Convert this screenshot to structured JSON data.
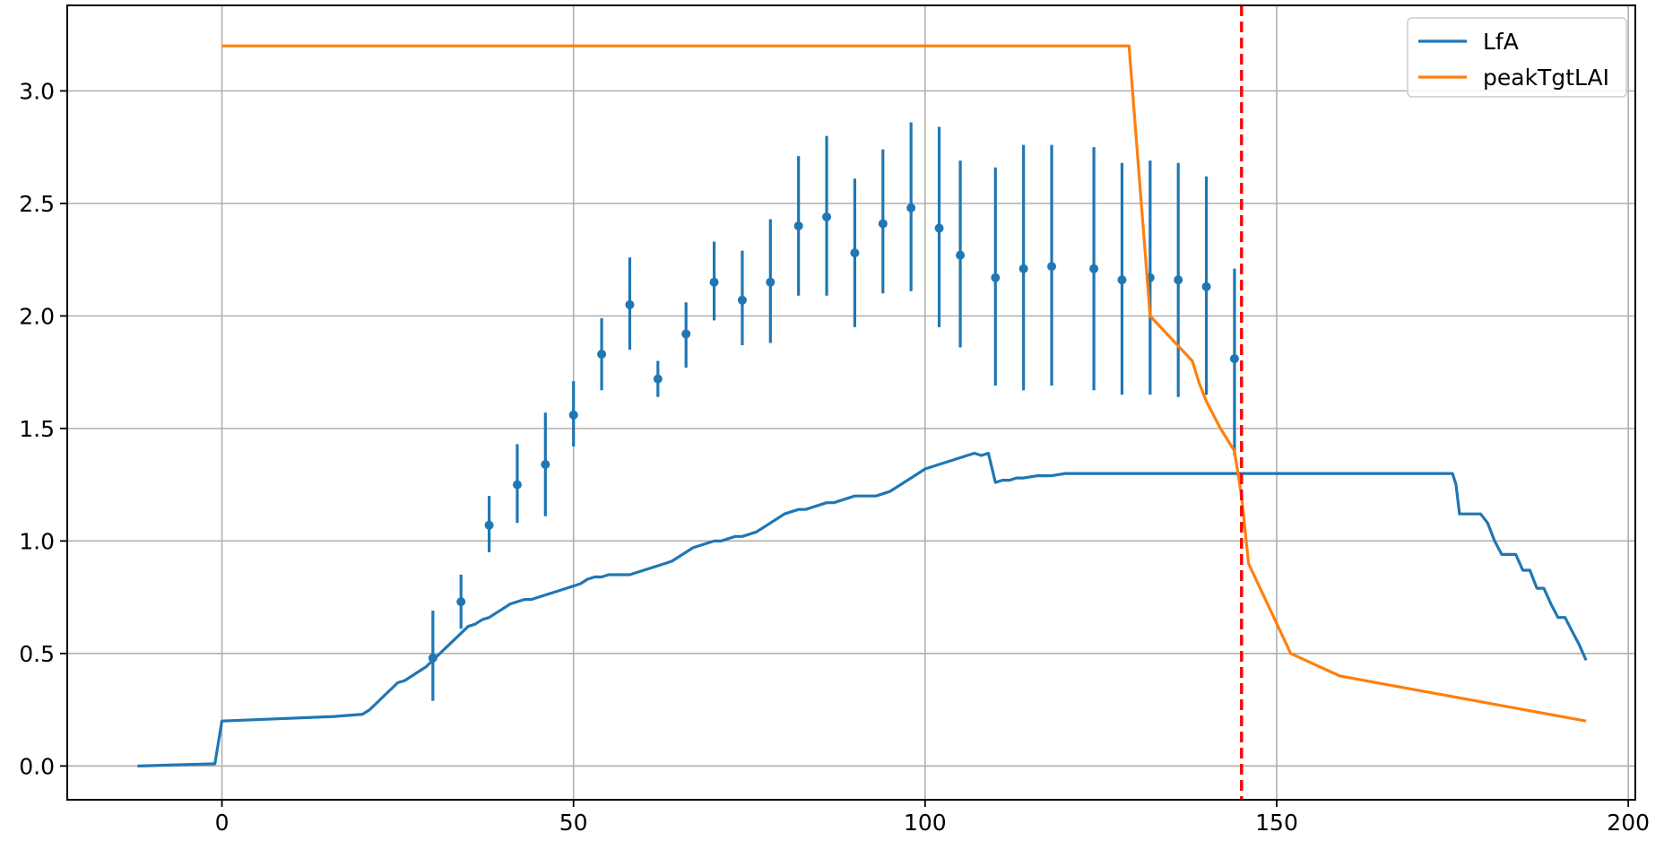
{
  "chart_data": {
    "type": "line",
    "title": "",
    "xlabel": "",
    "ylabel": "",
    "xlim": [
      -22,
      201
    ],
    "ylim": [
      -0.15,
      3.38
    ],
    "xticks": [
      0,
      50,
      100,
      150,
      200
    ],
    "yticks": [
      0.0,
      0.5,
      1.0,
      1.5,
      2.0,
      2.5,
      3.0
    ],
    "xtick_labels": [
      "0",
      "50",
      "100",
      "150",
      "200"
    ],
    "ytick_labels": [
      "0.0",
      "0.5",
      "1.0",
      "1.5",
      "2.0",
      "2.5",
      "3.0"
    ],
    "grid": true,
    "legend_position": "top-right",
    "series": [
      {
        "name": "LfA",
        "color": "#1f77b4",
        "x": [
          -12,
          -1,
          0,
          16,
          20,
          21,
          22,
          23,
          24,
          25,
          26,
          27,
          28,
          29,
          30,
          31,
          32,
          33,
          34,
          35,
          36,
          37,
          38,
          39,
          40,
          41,
          42,
          43,
          44,
          45,
          46,
          47,
          48,
          49,
          50,
          51,
          52,
          53,
          54,
          55,
          56,
          57,
          58,
          59,
          60,
          61,
          62,
          63,
          64,
          65,
          66,
          67,
          68,
          69,
          70,
          71,
          72,
          73,
          74,
          75,
          76,
          77,
          78,
          79,
          80,
          81,
          82,
          83,
          84,
          85,
          86,
          87,
          88,
          89,
          90,
          91,
          92,
          93,
          94,
          95,
          96,
          97,
          98,
          99,
          100,
          101,
          102,
          103,
          104,
          105,
          106,
          107,
          108,
          109,
          110,
          111,
          112,
          113,
          114,
          116,
          118,
          120,
          125,
          130,
          140,
          150,
          160,
          170,
          175,
          175.5,
          176,
          179,
          180,
          181,
          182,
          182.5,
          183,
          184,
          185,
          186,
          187,
          188,
          189,
          190,
          191,
          192,
          193,
          194
        ],
        "values": [
          0.0,
          0.01,
          0.2,
          0.22,
          0.23,
          0.25,
          0.28,
          0.31,
          0.34,
          0.37,
          0.38,
          0.4,
          0.42,
          0.44,
          0.47,
          0.5,
          0.53,
          0.56,
          0.59,
          0.62,
          0.63,
          0.65,
          0.66,
          0.68,
          0.7,
          0.72,
          0.73,
          0.74,
          0.74,
          0.75,
          0.76,
          0.77,
          0.78,
          0.79,
          0.8,
          0.81,
          0.83,
          0.84,
          0.84,
          0.85,
          0.85,
          0.85,
          0.85,
          0.86,
          0.87,
          0.88,
          0.89,
          0.9,
          0.91,
          0.93,
          0.95,
          0.97,
          0.98,
          0.99,
          1.0,
          1.0,
          1.01,
          1.02,
          1.02,
          1.03,
          1.04,
          1.06,
          1.08,
          1.1,
          1.12,
          1.13,
          1.14,
          1.14,
          1.15,
          1.16,
          1.17,
          1.17,
          1.18,
          1.19,
          1.2,
          1.2,
          1.2,
          1.2,
          1.21,
          1.22,
          1.24,
          1.26,
          1.28,
          1.3,
          1.32,
          1.33,
          1.34,
          1.35,
          1.36,
          1.37,
          1.38,
          1.39,
          1.38,
          1.39,
          1.26,
          1.27,
          1.27,
          1.28,
          1.28,
          1.29,
          1.29,
          1.3,
          1.3,
          1.3,
          1.3,
          1.3,
          1.3,
          1.3,
          1.3,
          1.25,
          1.12,
          1.12,
          1.08,
          1.0,
          0.94,
          0.94,
          0.94,
          0.94,
          0.87,
          0.87,
          0.79,
          0.79,
          0.72,
          0.66,
          0.66,
          0.6,
          0.54,
          0.47
        ]
      },
      {
        "name": "peakTgtLAI",
        "color": "#ff7f0e",
        "x": [
          0,
          129,
          132,
          138,
          139,
          140,
          142,
          144,
          145,
          146,
          152,
          159,
          194
        ],
        "values": [
          3.2,
          3.2,
          2.0,
          1.8,
          1.7,
          1.62,
          1.5,
          1.4,
          1.2,
          0.9,
          0.5,
          0.4,
          0.2
        ]
      }
    ],
    "error_bars": {
      "color": "#1f77b4",
      "x": [
        30,
        34,
        38,
        42,
        46,
        50,
        54,
        58,
        62,
        66,
        70,
        74,
        78,
        82,
        86,
        90,
        94,
        98,
        102,
        105,
        110,
        114,
        118,
        124,
        128,
        132,
        136,
        140,
        144
      ],
      "y": [
        0.48,
        0.73,
        1.07,
        1.25,
        1.34,
        1.56,
        1.83,
        2.05,
        1.72,
        1.92,
        2.15,
        2.07,
        2.15,
        2.4,
        2.44,
        2.28,
        2.41,
        2.48,
        2.39,
        2.27,
        2.17,
        2.21,
        2.22,
        2.21,
        2.16,
        2.17,
        2.16,
        2.13,
        1.81
      ],
      "lower": [
        0.29,
        0.61,
        0.95,
        1.08,
        1.11,
        1.42,
        1.67,
        1.85,
        1.64,
        1.77,
        1.98,
        1.87,
        1.88,
        2.09,
        2.09,
        1.95,
        2.1,
        2.11,
        1.95,
        1.86,
        1.69,
        1.67,
        1.69,
        1.67,
        1.65,
        1.65,
        1.64,
        1.65,
        1.38
      ],
      "upper": [
        0.69,
        0.85,
        1.2,
        1.43,
        1.57,
        1.71,
        1.99,
        2.26,
        1.8,
        2.06,
        2.33,
        2.29,
        2.43,
        2.71,
        2.8,
        2.61,
        2.74,
        2.86,
        2.84,
        2.69,
        2.66,
        2.76,
        2.76,
        2.75,
        2.68,
        2.69,
        2.68,
        2.62,
        2.21
      ]
    },
    "vertical_line": {
      "x": 145,
      "color": "#ff0000",
      "style": "dashed"
    }
  }
}
